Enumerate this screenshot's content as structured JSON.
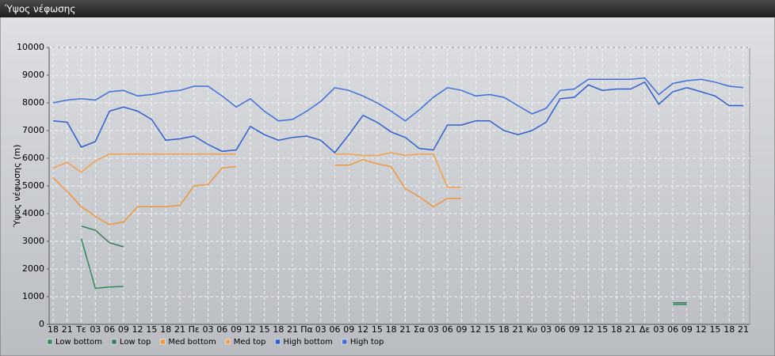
{
  "window": {
    "title": "Ύψος νέφωσης"
  },
  "chart_data": {
    "type": "line",
    "y_label": "Ύψος νέφωσης (m)",
    "categories": [
      "18",
      "21",
      "Τε",
      "03",
      "06",
      "09",
      "12",
      "15",
      "18",
      "21",
      "Πε",
      "03",
      "06",
      "09",
      "12",
      "15",
      "18",
      "21",
      "Πα",
      "03",
      "06",
      "09",
      "12",
      "15",
      "18",
      "21",
      "Σα",
      "03",
      "06",
      "09",
      "12",
      "15",
      "18",
      "21",
      "Κυ",
      "03",
      "06",
      "09",
      "12",
      "15",
      "18",
      "21",
      "Δε",
      "03",
      "06",
      "09",
      "12",
      "15",
      "18",
      "21"
    ],
    "ylim": [
      0,
      10000
    ],
    "yticks": [
      0,
      1000,
      2000,
      3000,
      4000,
      5000,
      6000,
      7000,
      8000,
      9000,
      10000
    ],
    "grid": true,
    "legend": "bottom-left",
    "series": [
      {
        "name": "Low bottom",
        "color": "#2e8a57",
        "values": [
          null,
          null,
          3100,
          1300,
          1350,
          1370,
          null,
          null,
          null,
          null,
          null,
          null,
          null,
          null,
          null,
          null,
          null,
          null,
          null,
          null,
          null,
          null,
          null,
          null,
          null,
          null,
          null,
          null,
          null,
          null,
          null,
          null,
          null,
          null,
          null,
          null,
          null,
          null,
          null,
          null,
          null,
          null,
          null,
          null,
          720,
          720,
          null,
          null,
          null,
          null
        ]
      },
      {
        "name": "Low top",
        "color": "#3a7a5a",
        "values": [
          null,
          null,
          3550,
          3400,
          2950,
          2800,
          null,
          null,
          null,
          null,
          null,
          null,
          null,
          null,
          null,
          null,
          null,
          null,
          null,
          null,
          null,
          null,
          null,
          null,
          null,
          null,
          null,
          null,
          null,
          null,
          null,
          null,
          null,
          null,
          null,
          null,
          null,
          null,
          null,
          null,
          null,
          null,
          null,
          null,
          780,
          780,
          null,
          null,
          null,
          null
        ]
      },
      {
        "name": "Med bottom",
        "color": "#f0963a",
        "values": [
          5300,
          4800,
          4250,
          3900,
          3600,
          3700,
          4250,
          4250,
          4250,
          4300,
          5000,
          5050,
          5650,
          5700,
          null,
          null,
          null,
          null,
          null,
          null,
          5750,
          5750,
          5950,
          5800,
          5700,
          4900,
          4600,
          4250,
          4550,
          4550,
          null,
          null,
          null,
          null,
          null,
          null,
          null,
          null,
          null,
          null,
          null,
          null,
          null,
          null,
          null,
          null,
          null,
          null,
          null,
          null
        ]
      },
      {
        "name": "Med top",
        "color": "#f4a04a",
        "values": [
          5650,
          5850,
          5500,
          5900,
          6150,
          6150,
          6150,
          6150,
          6150,
          6150,
          6150,
          6150,
          6150,
          6150,
          null,
          null,
          null,
          null,
          null,
          null,
          6150,
          6150,
          6100,
          6100,
          6200,
          6100,
          6150,
          6150,
          4950,
          4950,
          null,
          null,
          null,
          null,
          null,
          null,
          null,
          null,
          null,
          null,
          null,
          null,
          null,
          null,
          null,
          null,
          null,
          null,
          null,
          null
        ]
      },
      {
        "name": "High bottom",
        "color": "#2f5fd0",
        "values": [
          7350,
          7300,
          6400,
          6600,
          7700,
          7850,
          7700,
          7400,
          6650,
          6700,
          6800,
          6500,
          6250,
          6300,
          7150,
          6850,
          6650,
          6750,
          6800,
          6650,
          6200,
          6850,
          7550,
          7300,
          6950,
          6750,
          6350,
          6300,
          7200,
          7200,
          7350,
          7350,
          7000,
          6850,
          7000,
          7300,
          8150,
          8200,
          8650,
          8450,
          8500,
          8500,
          8750,
          7950,
          8400,
          8550,
          8400,
          8250,
          7900,
          7900
        ]
      },
      {
        "name": "High top",
        "color": "#3f6fdc",
        "values": [
          8000,
          8100,
          8150,
          8100,
          8400,
          8450,
          8250,
          8300,
          8400,
          8450,
          8600,
          8600,
          8250,
          7850,
          8150,
          7700,
          7350,
          7400,
          7700,
          8050,
          8550,
          8450,
          8250,
          8000,
          7700,
          7350,
          7750,
          8200,
          8550,
          8450,
          8250,
          8300,
          8200,
          7900,
          7600,
          7800,
          8450,
          8500,
          8850,
          8850,
          8850,
          8850,
          8900,
          8300,
          8700,
          8800,
          8850,
          8750,
          8600,
          8550
        ]
      }
    ]
  }
}
